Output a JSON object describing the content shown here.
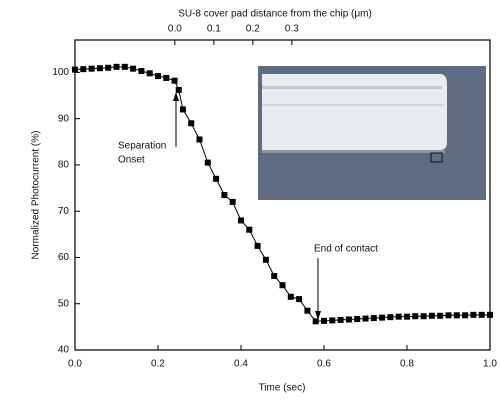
{
  "chart_data": {
    "type": "line",
    "x_label": "Time (sec)",
    "y_label": "Normalized Photocurrent (%)",
    "x2_label": "SU-8 cover pad distance from the chip (μm)",
    "xlim": [
      0,
      1.0
    ],
    "xticks": [
      {
        "value": 0,
        "label": "0.0"
      },
      {
        "value": 0.2,
        "label": "0.2"
      },
      {
        "value": 0.4,
        "label": "0.4"
      },
      {
        "value": 0.6,
        "label": "0.6"
      },
      {
        "value": 0.8,
        "label": "0.8"
      },
      {
        "value": 1.0,
        "label": "1.0"
      }
    ],
    "x2lim": [
      -0.256,
      0.808
    ],
    "x2ticks": [
      {
        "value": 0,
        "label": "0.0"
      },
      0.1,
      0.2,
      0.3
    ],
    "ylim": [
      40,
      107
    ],
    "yticks": [
      40,
      50,
      60,
      70,
      80,
      90,
      100
    ],
    "annotations": [
      {
        "lines": [
          "Separation",
          "Onset"
        ]
      },
      {
        "lines": [
          "End of contact"
        ]
      }
    ],
    "series": [
      {
        "color": "#000000",
        "x": [
          0,
          0.02,
          0.04,
          0.06,
          0.08,
          0.1,
          0.12,
          0.14,
          0.16,
          0.18,
          0.2,
          0.22,
          0.24,
          0.25,
          0.26,
          0.28,
          0.3,
          0.32,
          0.34,
          0.36,
          0.38,
          0.4,
          0.42,
          0.44,
          0.46,
          0.48,
          0.5,
          0.52,
          0.54,
          0.56,
          0.58,
          0.6,
          0.62,
          0.64,
          0.66,
          0.68,
          0.7,
          0.72,
          0.74,
          0.76,
          0.78,
          0.8,
          0.82,
          0.84,
          0.86,
          0.88,
          0.9,
          0.92,
          0.94,
          0.96,
          0.98,
          1.0
        ],
        "values": [
          100.6,
          100.7,
          100.8,
          100.9,
          101.0,
          101.2,
          101.2,
          100.8,
          100.3,
          99.8,
          99.2,
          98.8,
          98.2,
          96.2,
          92,
          89,
          85.5,
          80.5,
          77,
          73.5,
          72,
          68,
          66,
          62.5,
          59.5,
          56,
          54,
          51.5,
          51,
          48.5,
          46.2,
          46.3,
          46.4,
          46.5,
          46.6,
          46.7,
          46.8,
          46.9,
          47,
          47.1,
          47.2,
          47.2,
          47.3,
          47.3,
          47.4,
          47.4,
          47.5,
          47.5,
          47.5,
          47.6,
          47.6,
          47.6
        ]
      }
    ]
  }
}
